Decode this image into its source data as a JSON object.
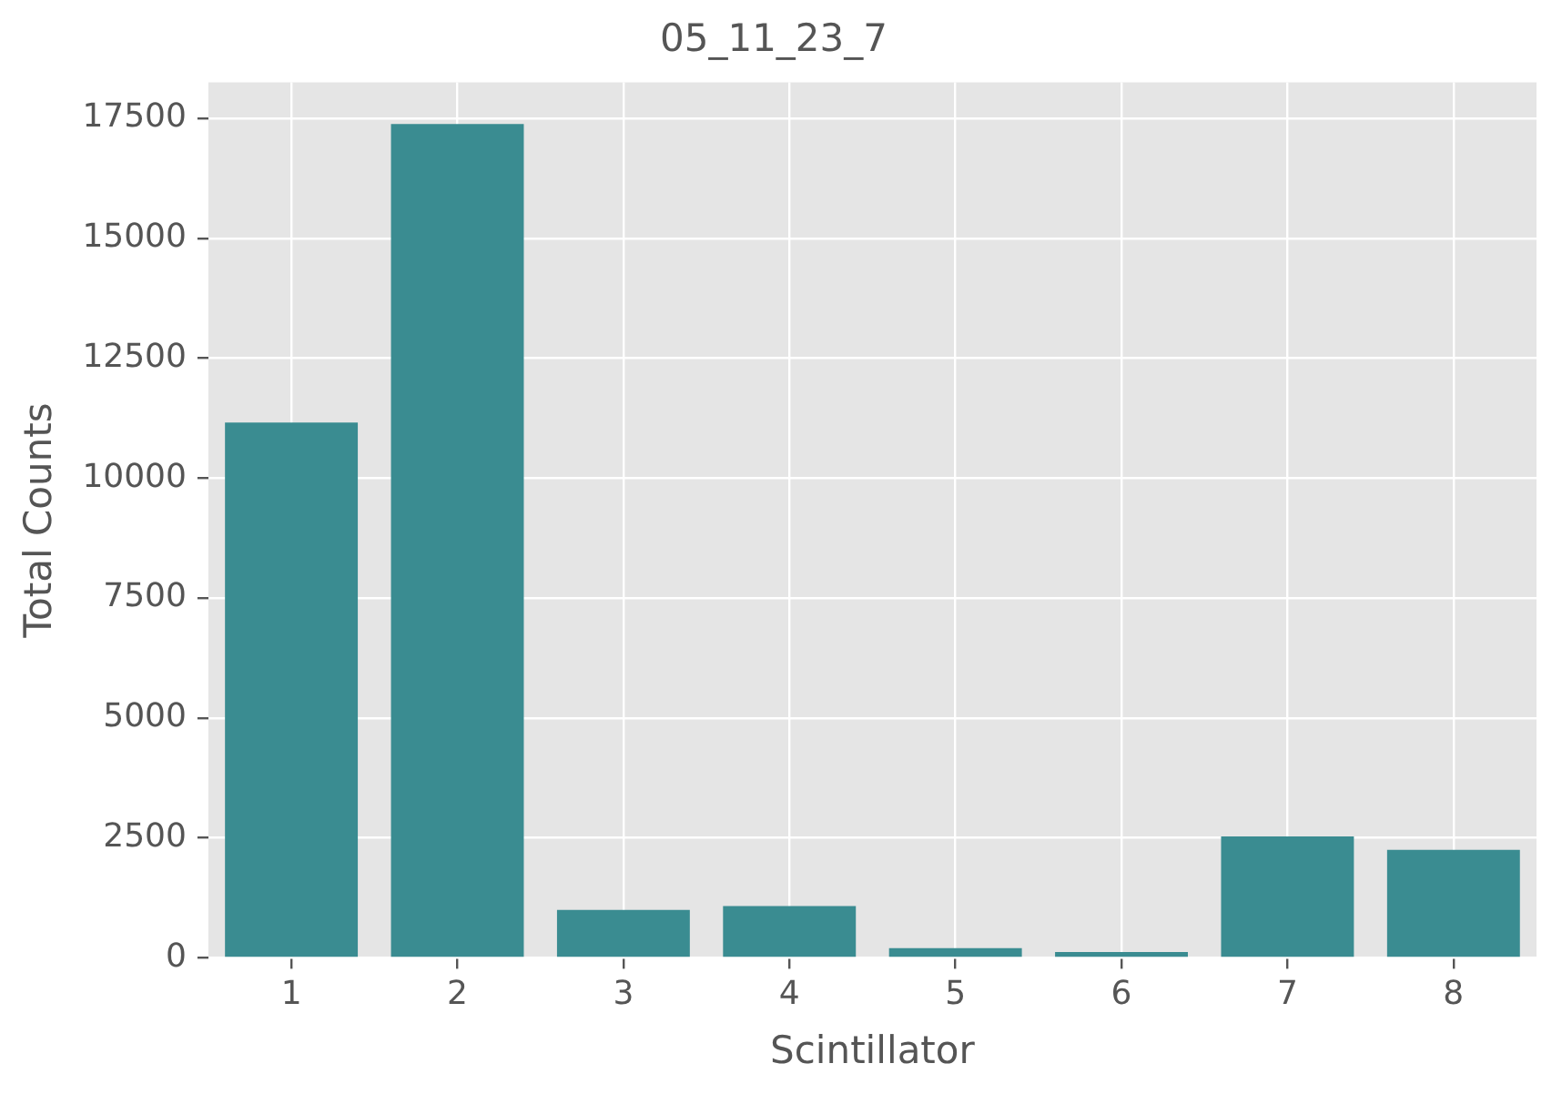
{
  "chart_data": {
    "type": "bar",
    "title": "05_11_23_7",
    "xlabel": "Scintillator",
    "ylabel": "Total Counts",
    "categories": [
      "1",
      "2",
      "3",
      "4",
      "5",
      "6",
      "7",
      "8"
    ],
    "values": [
      11160,
      17380,
      1000,
      1080,
      200,
      120,
      2530,
      2250
    ],
    "color": "#3a8c91",
    "ylim": [
      0,
      18250
    ],
    "yticks": [
      0,
      2500,
      5000,
      7500,
      10000,
      12500,
      15000,
      17500
    ],
    "grid": true,
    "legend": false
  }
}
